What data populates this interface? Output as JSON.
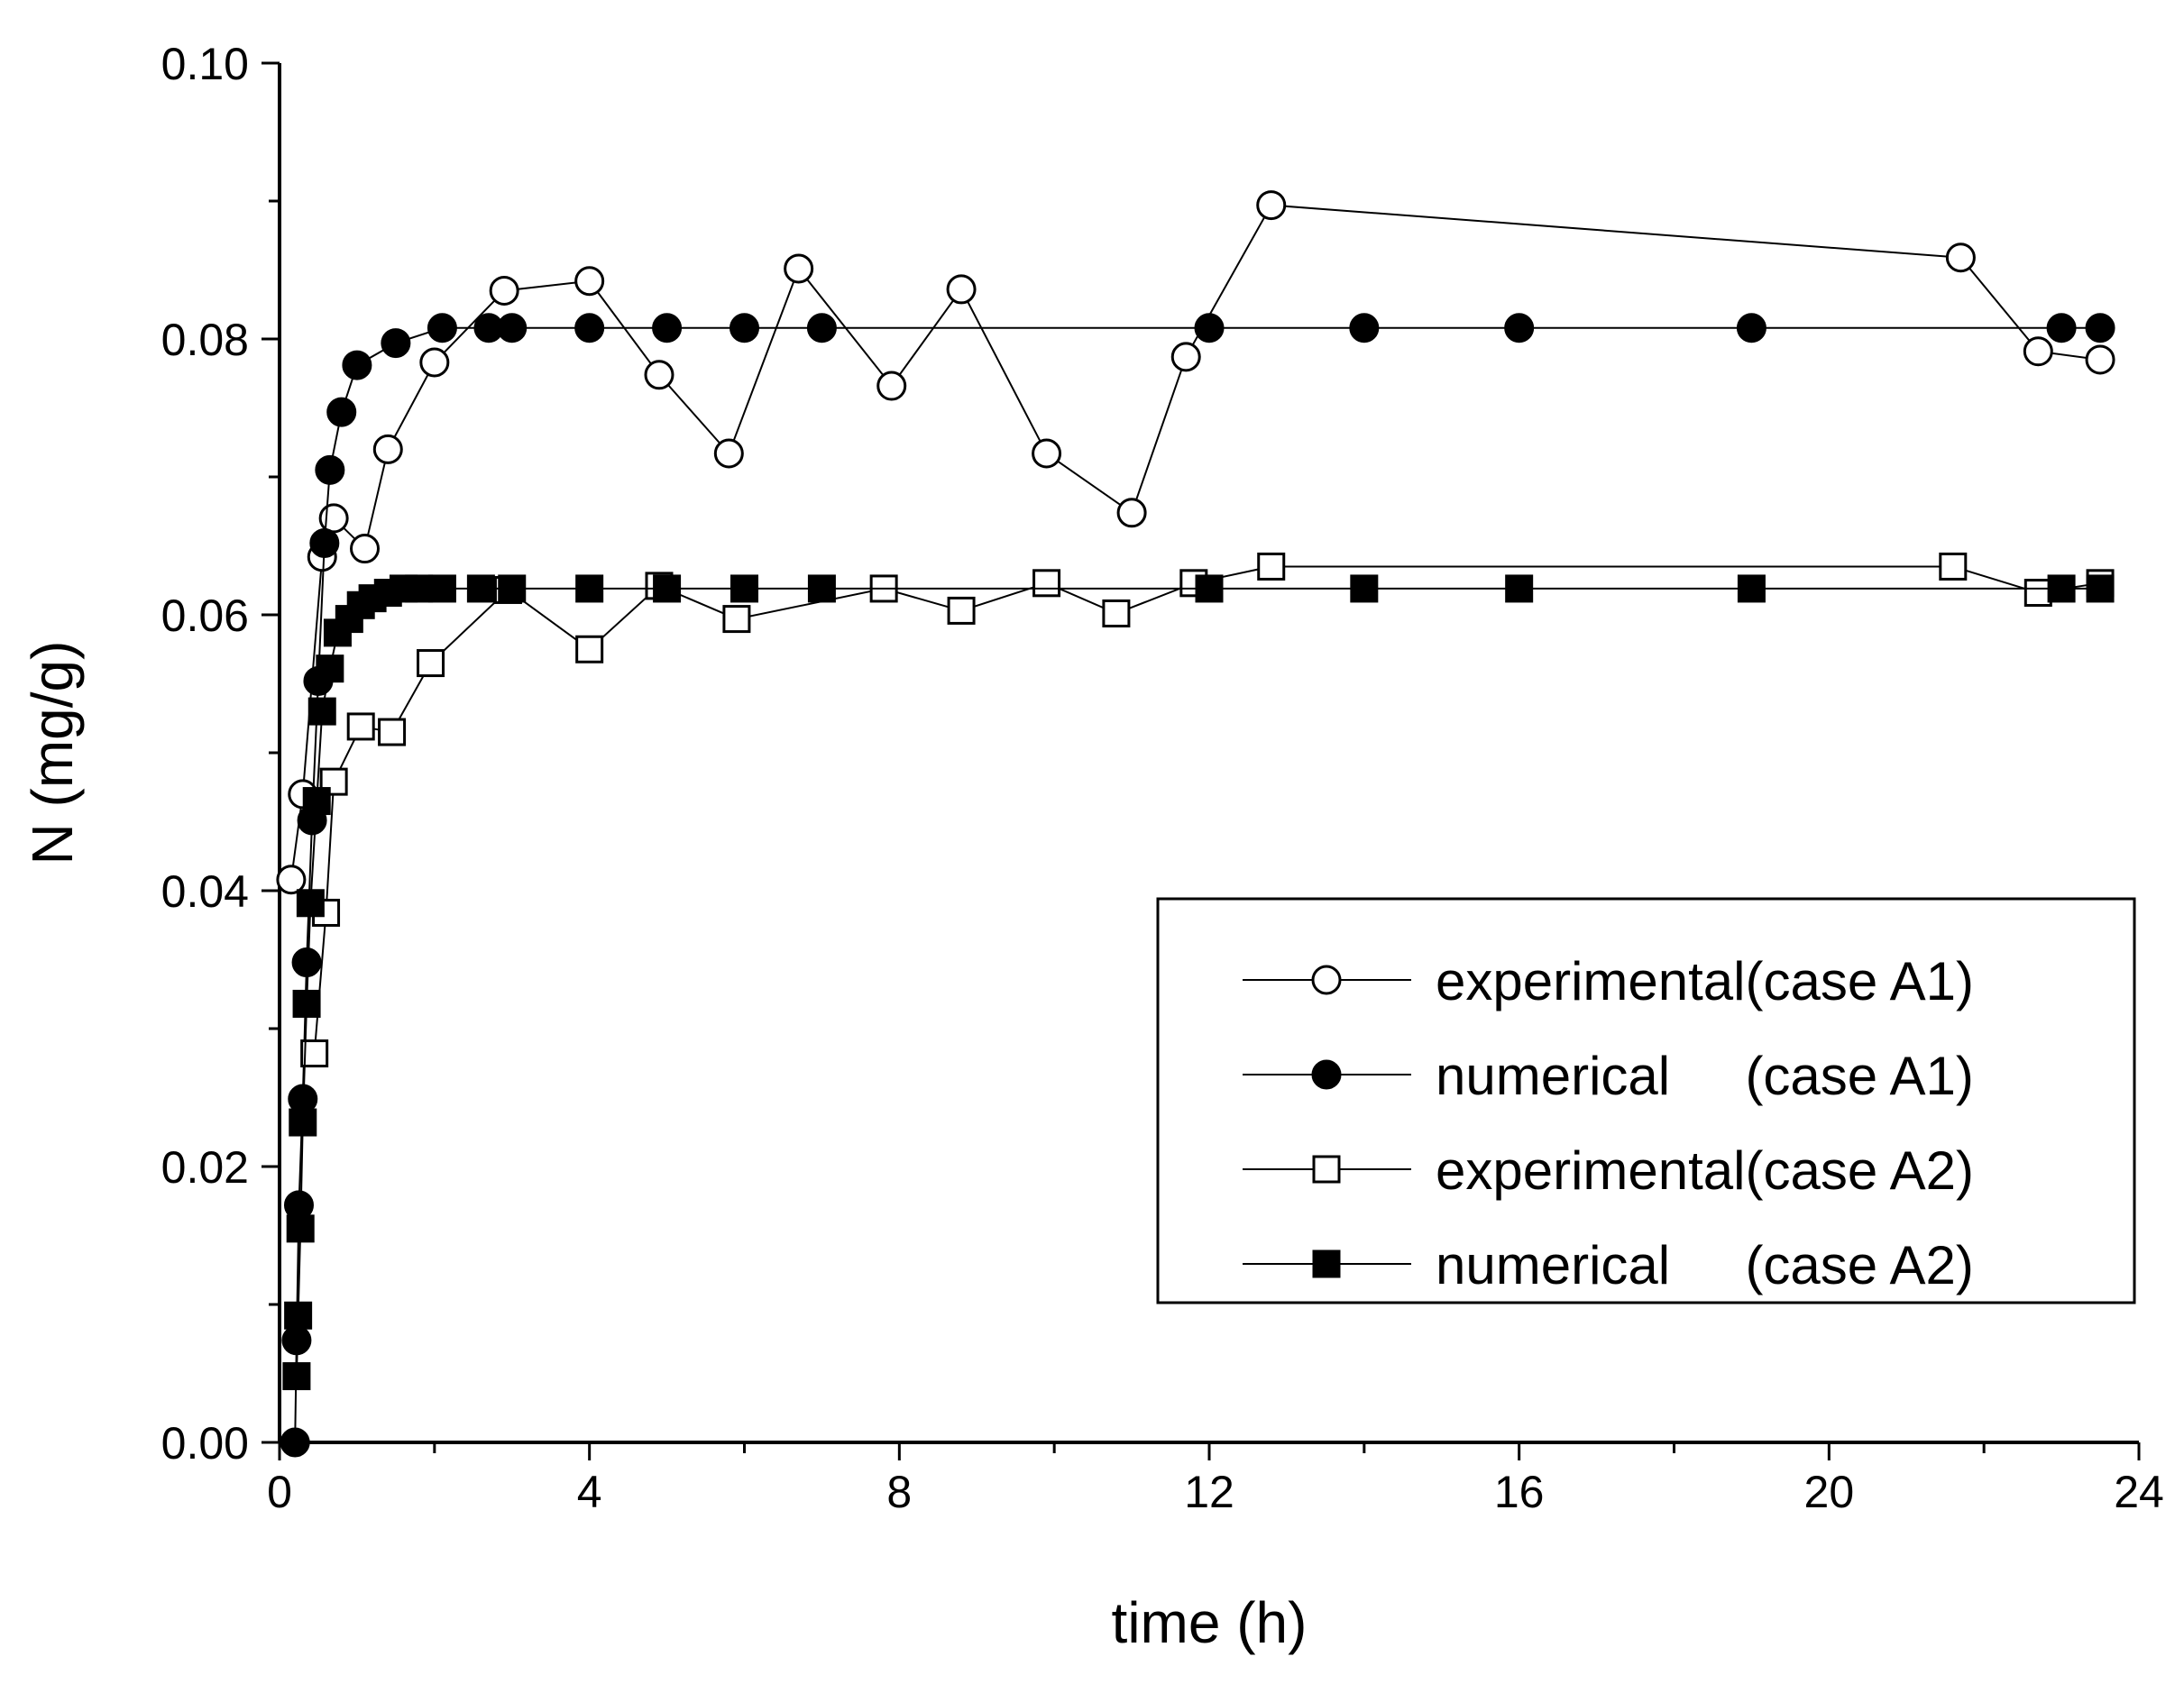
{
  "chart_data": {
    "type": "scatter",
    "title": "",
    "xlabel": "time (h)",
    "ylabel": "N (mg/g)",
    "xlim": [
      0,
      24
    ],
    "ylim": [
      0.0,
      0.1
    ],
    "grid": false,
    "legend_position": "right-middle",
    "x_ticks": [
      0,
      4,
      8,
      12,
      16,
      20,
      24
    ],
    "x_tick_labels": [
      "0",
      "4",
      "8",
      "12",
      "16",
      "20",
      "24"
    ],
    "y_ticks": [
      0.0,
      0.02,
      0.04,
      0.06,
      0.08,
      0.1
    ],
    "y_tick_labels": [
      "0.00",
      "0.02",
      "0.04",
      "0.06",
      "0.08",
      "0.10"
    ],
    "series": [
      {
        "name": "experimental(case A1)",
        "legend_label": "experimental(case A1)",
        "marker": "open-circle",
        "x": [
          0.15,
          0.3,
          0.55,
          0.7,
          1.1,
          1.4,
          2.0,
          2.9,
          4.0,
          4.9,
          5.8,
          6.7,
          7.9,
          8.8,
          9.9,
          11.0,
          11.7,
          12.8,
          21.7,
          22.7,
          23.5
        ],
        "y": [
          0.0408,
          0.047,
          0.0642,
          0.067,
          0.0648,
          0.072,
          0.0783,
          0.0835,
          0.0842,
          0.0774,
          0.0717,
          0.0851,
          0.0766,
          0.0836,
          0.0717,
          0.0674,
          0.0787,
          0.0897,
          0.0859,
          0.0791,
          0.0785
        ]
      },
      {
        "name": "numerical (case A1)",
        "legend_label": "numerical     (case A1)",
        "marker": "filled-circle",
        "x": [
          0.2,
          0.22,
          0.25,
          0.3,
          0.35,
          0.42,
          0.5,
          0.58,
          0.65,
          0.8,
          1.0,
          1.5,
          2.1,
          2.7,
          3.0,
          4.0,
          5.0,
          6.0,
          7.0,
          12.0,
          14.0,
          16.0,
          19.0,
          23.0,
          23.5
        ],
        "y": [
          0.0,
          0.0074,
          0.0172,
          0.0249,
          0.0348,
          0.0451,
          0.0552,
          0.0652,
          0.0705,
          0.0747,
          0.0781,
          0.0797,
          0.0808,
          0.0808,
          0.0808,
          0.0808,
          0.0808,
          0.0808,
          0.0808,
          0.0808,
          0.0808,
          0.0808,
          0.0808,
          0.0808,
          0.0808
        ]
      },
      {
        "name": "experimental(case A2)",
        "legend_label": "experimental(case A2)",
        "marker": "open-square",
        "x": [
          0.45,
          0.6,
          0.7,
          1.05,
          1.45,
          1.95,
          2.95,
          4.0,
          4.9,
          5.9,
          7.8,
          8.8,
          9.9,
          10.8,
          11.8,
          12.8,
          21.6,
          22.7,
          23.5
        ],
        "y": [
          0.0282,
          0.0384,
          0.0479,
          0.0519,
          0.0515,
          0.0565,
          0.0618,
          0.0575,
          0.0621,
          0.0597,
          0.0619,
          0.0603,
          0.0623,
          0.0601,
          0.0623,
          0.0635,
          0.0635,
          0.0616,
          0.0623
        ]
      },
      {
        "name": "numerical (case A2)",
        "legend_label": "numerical     (case A2)",
        "marker": "filled-square",
        "x": [
          0.22,
          0.24,
          0.27,
          0.3,
          0.35,
          0.4,
          0.48,
          0.55,
          0.65,
          0.75,
          0.9,
          1.05,
          1.2,
          1.4,
          1.6,
          1.8,
          2.1,
          2.6,
          3.0,
          4.0,
          5.0,
          6.0,
          7.0,
          12.0,
          14.0,
          16.0,
          19.0,
          23.0,
          23.5
        ],
        "y": [
          0.0048,
          0.0092,
          0.0155,
          0.0232,
          0.0318,
          0.0391,
          0.0465,
          0.053,
          0.0561,
          0.0587,
          0.0597,
          0.0607,
          0.0612,
          0.0616,
          0.0619,
          0.0619,
          0.0619,
          0.0619,
          0.0619,
          0.0619,
          0.0619,
          0.0619,
          0.0619,
          0.0619,
          0.0619,
          0.0619,
          0.0619,
          0.0619,
          0.0619
        ]
      }
    ]
  }
}
